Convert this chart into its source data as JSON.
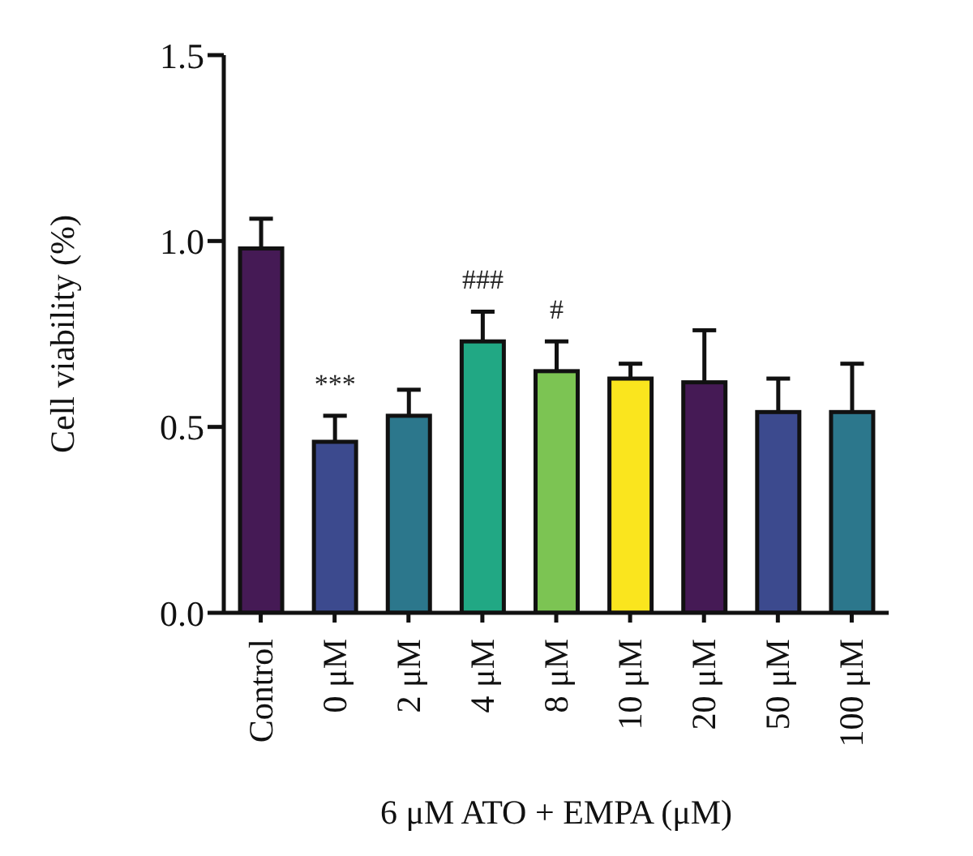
{
  "chart_data": {
    "type": "bar",
    "xlabel": "6 μM ATO + EMPA (μM)",
    "ylabel": "Cell viability (%)",
    "categories": [
      "Control",
      "0 μM",
      "2 μM",
      "4 μM",
      "8 μM",
      "10 μM",
      "20 μM",
      "50 μM",
      "100 μM"
    ],
    "values": [
      0.98,
      0.46,
      0.53,
      0.73,
      0.65,
      0.63,
      0.62,
      0.54,
      0.54
    ],
    "errors": [
      0.08,
      0.07,
      0.07,
      0.08,
      0.08,
      0.04,
      0.14,
      0.09,
      0.13
    ],
    "colors": [
      "#451a55",
      "#3c4a8e",
      "#2c778c",
      "#21a884",
      "#7cc453",
      "#fae51e",
      "#451a55",
      "#3c4a8e",
      "#2c778c"
    ],
    "ylim": [
      0,
      1.5
    ],
    "yticks": [
      {
        "value": 0,
        "label": "0.0"
      },
      {
        "value": 0.5,
        "label": "0.5"
      },
      {
        "value": 1,
        "label": "1.0"
      },
      {
        "value": 1.5,
        "label": "1.5"
      }
    ],
    "value_labels": [
      null,
      "***",
      null,
      "###",
      "#",
      null,
      null,
      null,
      null
    ],
    "grid": false,
    "legend": false
  }
}
